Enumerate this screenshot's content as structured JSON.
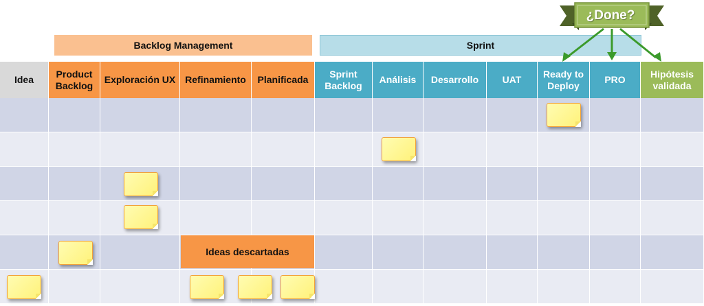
{
  "groups": {
    "backlog": "Backlog Management",
    "sprint": "Sprint"
  },
  "columns": [
    "Idea",
    "Product Backlog",
    "Exploración UX",
    "Refinamiento",
    "Planificada",
    "Sprint Backlog",
    "Análisis",
    "Desarrollo",
    "UAT",
    "Ready to Deploy",
    "PRO",
    "Hipótesis validada"
  ],
  "done_label": "¿Done?",
  "discarded_label": "Ideas descartadas",
  "colors": {
    "idea": "#d9d9d9",
    "backlog": "#f79646",
    "backlog_group": "#fac090",
    "sprint": "#4bacc6",
    "sprint_group": "#b7dde8",
    "validated": "#9bbb59",
    "grid_dark": "#d0d5e6",
    "grid_light": "#e9ebf3",
    "done_ribbon": "#9bbb59",
    "done_ribbon_dark": "#4f6228",
    "arrow": "#3b9a2b",
    "note_fill": "#fff59a",
    "note_border": "#f2a23a"
  }
}
